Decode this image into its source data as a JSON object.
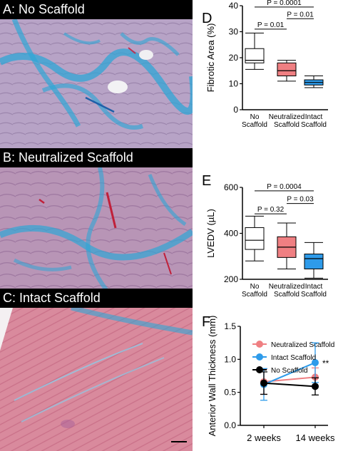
{
  "panels": [
    {
      "label": "A: No Scaffold",
      "stain": "fibrosis-heavy"
    },
    {
      "label": "B: Neutralized Scaffold",
      "stain": "fibrosis-moderate"
    },
    {
      "label": "C: Intact Scaffold",
      "stain": "fibrosis-light"
    }
  ],
  "colors": {
    "muscle": "#a98fb6",
    "muscle_pink": "#d88a9c",
    "collagen": "#2fa6d6",
    "no_scaffold": "#000000",
    "neutralized": "#ef7f82",
    "intact": "#2e9bea"
  },
  "chart_data": [
    {
      "panel": "D",
      "type": "box",
      "ylabel": "Fibrotic Area (%)",
      "ylim": [
        0,
        40
      ],
      "yticks": [
        "0",
        "10",
        "20",
        "30",
        "40"
      ],
      "categories": [
        [
          "No",
          "Scaffold"
        ],
        [
          "Neutralized",
          "Scaffold"
        ],
        [
          "Intact",
          "Scaffold"
        ]
      ],
      "boxes": [
        {
          "min": 15.5,
          "q1": 18,
          "median": 19,
          "q3": 23.5,
          "max": 29.5,
          "color": "#ffffff"
        },
        {
          "min": 11,
          "q1": 13,
          "median": 15,
          "q3": 18,
          "max": 19,
          "color": "#ef7f82"
        },
        {
          "min": 8.5,
          "q1": 9.5,
          "median": 10.5,
          "q3": 11.5,
          "max": 13,
          "color": "#2e9bea"
        }
      ],
      "significance": [
        {
          "from": 0,
          "to": 2,
          "label": "P = 0.0001",
          "y": 39.5
        },
        {
          "from": 1,
          "to": 2,
          "label": "P = 0.01",
          "y": 35
        },
        {
          "from": 0,
          "to": 1,
          "label": "P = 0.01",
          "y": 31
        }
      ]
    },
    {
      "panel": "E",
      "type": "box",
      "ylabel": "LVEDV (µL)",
      "ylim": [
        200,
        600
      ],
      "yticks": [
        "200",
        "400",
        "600"
      ],
      "categories": [
        [
          "No",
          "Scaffold"
        ],
        [
          "Neutralized",
          "Scaffold"
        ],
        [
          "Intact",
          "Scaffold"
        ]
      ],
      "boxes": [
        {
          "min": 280,
          "q1": 330,
          "median": 370,
          "q3": 425,
          "max": 475,
          "color": "#ffffff"
        },
        {
          "min": 245,
          "q1": 295,
          "median": 340,
          "q3": 385,
          "max": 445,
          "color": "#ef7f82"
        },
        {
          "min": 205,
          "q1": 245,
          "median": 290,
          "q3": 310,
          "max": 360,
          "color": "#2e9bea"
        }
      ],
      "significance": [
        {
          "from": 0,
          "to": 2,
          "label": "P = 0.0004",
          "y": 585
        },
        {
          "from": 1,
          "to": 2,
          "label": "P = 0.03",
          "y": 530
        },
        {
          "from": 0,
          "to": 1,
          "label": "P = 0.32",
          "y": 485
        }
      ]
    },
    {
      "panel": "F",
      "type": "line",
      "ylabel": "Anterior Wall Thickness (mm)",
      "ylim": [
        0,
        1.5
      ],
      "yticks": [
        "0.0",
        "0.5",
        "1.0",
        "1.5"
      ],
      "categories": [
        "2 weeks",
        "14 weeks"
      ],
      "series": [
        {
          "name": "Neutralized Scaffold",
          "color": "#ef7f82",
          "values": [
            0.66,
            0.73
          ],
          "errors": [
            0.19,
            0.14
          ]
        },
        {
          "name": "Intact Scaffold",
          "color": "#2e9bea",
          "values": [
            0.62,
            0.95
          ],
          "errors": [
            0.24,
            0.3
          ]
        },
        {
          "name": "No Scaffold",
          "color": "#000000",
          "values": [
            0.64,
            0.59
          ],
          "errors": [
            0.17,
            0.13
          ]
        }
      ],
      "annotation": "**"
    }
  ]
}
